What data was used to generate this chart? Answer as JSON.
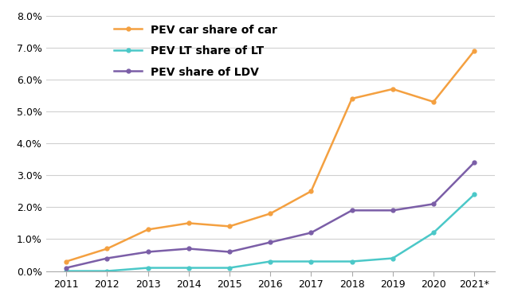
{
  "years": [
    2011,
    2012,
    2013,
    2014,
    2015,
    2016,
    2017,
    2018,
    2019,
    2020,
    2021
  ],
  "year_labels": [
    "2011",
    "2012",
    "2013",
    "2014",
    "2015",
    "2016",
    "2017",
    "2018",
    "2019",
    "2020",
    "2021*"
  ],
  "pev_car_share": [
    0.003,
    0.007,
    0.013,
    0.015,
    0.014,
    0.018,
    0.025,
    0.054,
    0.057,
    0.053,
    0.069
  ],
  "pev_lt_share": [
    0.0,
    0.0,
    0.001,
    0.001,
    0.001,
    0.003,
    0.003,
    0.003,
    0.004,
    0.012,
    0.024
  ],
  "pev_ldv_share": [
    0.001,
    0.004,
    0.006,
    0.007,
    0.006,
    0.009,
    0.012,
    0.019,
    0.019,
    0.021,
    0.034
  ],
  "color_car": "#F4A040",
  "color_lt": "#4BC8C8",
  "color_ldv": "#7B5EA7",
  "label_car": "PEV car share of car",
  "label_lt": "PEV LT share of LT",
  "label_ldv": "PEV share of LDV",
  "ylim": [
    0,
    0.082
  ],
  "yticks": [
    0.0,
    0.01,
    0.02,
    0.03,
    0.04,
    0.05,
    0.06,
    0.07,
    0.08
  ],
  "background_color": "#ffffff",
  "grid_color": "#d0d0d0"
}
